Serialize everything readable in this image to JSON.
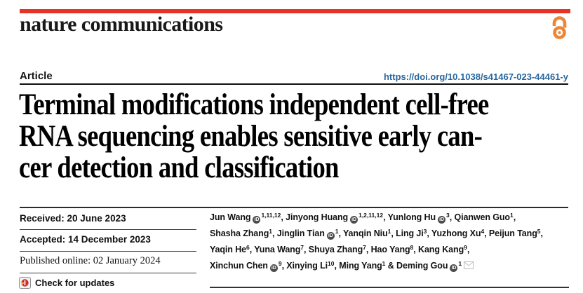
{
  "header": {
    "brand": "nature communications",
    "accent_color": "#e63323",
    "open_access_color": "#ee8534",
    "open_access_icon": "open-padlock"
  },
  "article": {
    "section_label": "Article",
    "doi": "https://doi.org/10.1038/s41467-023-44461-y",
    "doi_color": "#29679e"
  },
  "title": {
    "lines": [
      "Terminal modifications independent cell-free",
      "RNA sequencing enables sensitive early can-",
      "cer detection and classification"
    ]
  },
  "meta": {
    "received": "Received: 20 June 2023",
    "accepted": "Accepted: 14 December 2023",
    "published": "Published online: 02 January 2024",
    "check_updates": "Check for updates"
  },
  "authors": {
    "orcid_label": "iD",
    "lines": [
      [
        {
          "t": "Jun Wang"
        },
        {
          "i": "orcid"
        },
        {
          "s": "1,11,12"
        },
        {
          "t": ", Jinyong Huang"
        },
        {
          "i": "orcid"
        },
        {
          "s": "1,2,11,12"
        },
        {
          "t": ", Yunlong Hu"
        },
        {
          "i": "orcid"
        },
        {
          "s": "3"
        },
        {
          "t": ", Qianwen Guo"
        },
        {
          "s": "1"
        },
        {
          "t": ","
        }
      ],
      [
        {
          "t": "Shasha Zhang"
        },
        {
          "s": "1"
        },
        {
          "t": ", Jinglin Tian"
        },
        {
          "i": "orcid"
        },
        {
          "s": "1"
        },
        {
          "t": ", Yanqin Niu"
        },
        {
          "s": "1"
        },
        {
          "t": ", Ling Ji"
        },
        {
          "s": "3"
        },
        {
          "t": ", Yuzhong Xu"
        },
        {
          "s": "4"
        },
        {
          "t": ", Peijun Tang"
        },
        {
          "s": "5"
        },
        {
          "t": ","
        }
      ],
      [
        {
          "t": "Yaqin He"
        },
        {
          "s": "6"
        },
        {
          "t": ", Yuna Wang"
        },
        {
          "s": "7"
        },
        {
          "t": ", Shuya Zhang"
        },
        {
          "s": "7"
        },
        {
          "t": ", Hao Yang"
        },
        {
          "s": "8"
        },
        {
          "t": ", Kang Kang"
        },
        {
          "s": "9"
        },
        {
          "t": ","
        }
      ],
      [
        {
          "t": "Xinchun Chen"
        },
        {
          "i": "orcid"
        },
        {
          "s": "9"
        },
        {
          "t": ", Xinying Li"
        },
        {
          "s": "10"
        },
        {
          "t": ", Ming Yang"
        },
        {
          "s": "1"
        },
        {
          "t": " & Deming Gou"
        },
        {
          "i": "orcid"
        },
        {
          "s": "1"
        },
        {
          "i": "envelope"
        }
      ]
    ]
  }
}
